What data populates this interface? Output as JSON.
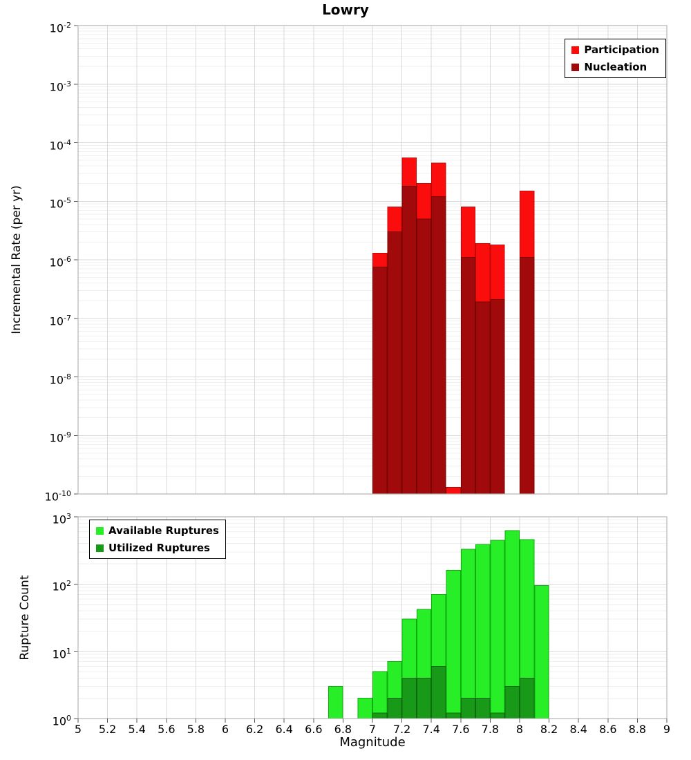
{
  "colors": {
    "grid_major": "#d9d9d9",
    "grid_minor": "#efefef",
    "frame": "#b3b3b3",
    "tick": "#555555",
    "participation": "#fb0d0d",
    "nucleation": "#a00a0a",
    "available": "#27ee27",
    "utilized": "#189a18"
  },
  "chart_data": [
    {
      "type": "bar",
      "panel": "top",
      "title": "Lowry",
      "xlabel": "Magnitude",
      "ylabel": "Incremental Rate (per yr)",
      "xlim": [
        5,
        9
      ],
      "yscale": "log",
      "ylim": [
        1e-10,
        0.01
      ],
      "grid": true,
      "legend_position": "top-right",
      "bin_width": 0.1,
      "ytick_exponents": [
        -2,
        -3,
        -4,
        -5,
        -6,
        -7,
        -8,
        -9,
        -10
      ],
      "xticks": [
        5,
        5.2,
        5.4,
        5.6,
        5.8,
        6,
        6.2,
        6.4,
        6.6,
        6.8,
        7,
        7.2,
        7.4,
        7.6,
        7.8,
        8,
        8.2,
        8.4,
        8.6,
        8.8,
        9
      ],
      "xtick_labels": [
        "5",
        "5.2",
        "5.4",
        "5.6",
        "5.8",
        "6",
        "6.2",
        "6.4",
        "6.6",
        "6.8",
        "7",
        "7.2",
        "7.4",
        "7.6",
        "7.8",
        "8",
        "8.2",
        "8.4",
        "8.6",
        "8.8",
        "9"
      ],
      "series": [
        {
          "name": "Participation",
          "color": "#fb0d0d",
          "edge_color": "#c40808",
          "bins": [
            7.0,
            7.1,
            7.2,
            7.3,
            7.4,
            7.5,
            7.6,
            7.7,
            7.8,
            8.0
          ],
          "values": [
            1.3e-06,
            8e-06,
            5.5e-05,
            2e-05,
            4.5e-05,
            1.3e-10,
            8e-06,
            1.9e-06,
            1.8e-06,
            1.5e-05
          ]
        },
        {
          "name": "Nucleation",
          "color": "#a00a0a",
          "edge_color": "#7a0404",
          "bins": [
            7.0,
            7.1,
            7.2,
            7.3,
            7.4,
            7.6,
            7.7,
            7.8,
            8.0
          ],
          "values": [
            7.5e-07,
            3e-06,
            1.8e-05,
            5e-06,
            1.2e-05,
            1.1e-06,
            1.9e-07,
            2.1e-07,
            1.1e-06
          ]
        }
      ]
    },
    {
      "type": "bar",
      "panel": "bottom",
      "title": "",
      "xlabel": "Magnitude",
      "ylabel": "Rupture Count",
      "xlim": [
        5,
        9
      ],
      "yscale": "log",
      "ylim": [
        1,
        1000
      ],
      "grid": true,
      "legend_position": "top-left",
      "bin_width": 0.1,
      "ytick_exponents": [
        3,
        2,
        1,
        0
      ],
      "xticks": [
        5,
        5.2,
        5.4,
        5.6,
        5.8,
        6,
        6.2,
        6.4,
        6.6,
        6.8,
        7,
        7.2,
        7.4,
        7.6,
        7.8,
        8,
        8.2,
        8.4,
        8.6,
        8.8,
        9
      ],
      "xtick_labels": [
        "5",
        "5.2",
        "5.4",
        "5.6",
        "5.8",
        "6",
        "6.2",
        "6.4",
        "6.6",
        "6.8",
        "7",
        "7.2",
        "7.4",
        "7.6",
        "7.8",
        "8",
        "8.2",
        "8.4",
        "8.6",
        "8.8",
        "9"
      ],
      "series": [
        {
          "name": "Available Ruptures",
          "color": "#27ee27",
          "edge_color": "#0fae0f",
          "bins": [
            6.7,
            6.9,
            7.0,
            7.1,
            7.2,
            7.3,
            7.4,
            7.5,
            7.6,
            7.7,
            7.8,
            7.9,
            8.0,
            8.1
          ],
          "values": [
            3,
            2,
            5,
            7,
            30,
            42,
            70,
            160,
            330,
            390,
            450,
            620,
            460,
            95
          ]
        },
        {
          "name": "Utilized Ruptures",
          "color": "#189a18",
          "edge_color": "#0d6b0d",
          "bins": [
            7.0,
            7.1,
            7.2,
            7.3,
            7.4,
            7.5,
            7.6,
            7.7,
            7.8,
            7.9,
            8.0
          ],
          "values": [
            1,
            2,
            4,
            4,
            6,
            1,
            2,
            2,
            1,
            3,
            4
          ]
        }
      ]
    }
  ]
}
